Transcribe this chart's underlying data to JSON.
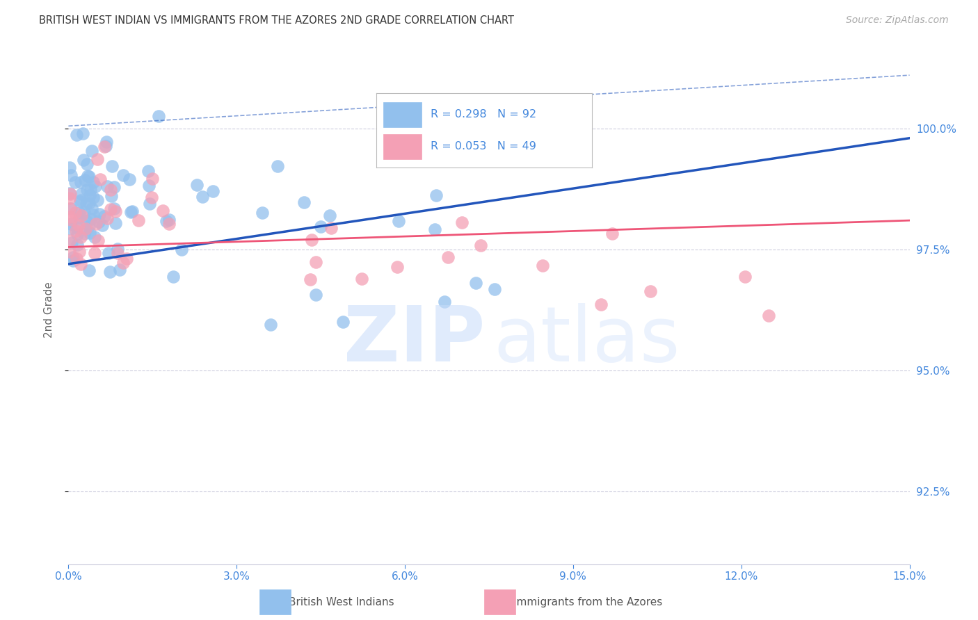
{
  "title": "BRITISH WEST INDIAN VS IMMIGRANTS FROM THE AZORES 2ND GRADE CORRELATION CHART",
  "source": "Source: ZipAtlas.com",
  "ylabel": "2nd Grade",
  "color_blue": "#92C0ED",
  "color_pink": "#F4A0B5",
  "color_line_blue": "#2255BB",
  "color_line_pink": "#EE5577",
  "color_axis": "#4488DD",
  "color_grid": "#CCCCDD",
  "color_title": "#333333",
  "color_source": "#AAAAAA",
  "color_legend_text": "#4488DD",
  "color_watermark_zip": "#C8DCFA",
  "color_watermark_atlas": "#C8DCFA",
  "xlim": [
    0.0,
    15.0
  ],
  "ylim": [
    91.0,
    101.5
  ],
  "yticks": [
    92.5,
    95.0,
    97.5,
    100.0
  ],
  "ytick_labels": [
    "92.5%",
    "95.0%",
    "97.5%",
    "100.0%"
  ],
  "xticks": [
    0.0,
    3.0,
    6.0,
    9.0,
    12.0,
    15.0
  ],
  "xtick_labels": [
    "0.0%",
    "3.0%",
    "6.0%",
    "9.0%",
    "12.0%",
    "15.0%"
  ],
  "legend_r1": "R = 0.298",
  "legend_n1": "N = 92",
  "legend_r2": "R = 0.053",
  "legend_n2": "N = 49",
  "blue_trendline": [
    0.0,
    15.0,
    97.2,
    99.8
  ],
  "blue_dash_upper": [
    0.0,
    15.0,
    100.05,
    101.1
  ],
  "pink_trendline": [
    0.0,
    15.0,
    97.55,
    98.1
  ]
}
